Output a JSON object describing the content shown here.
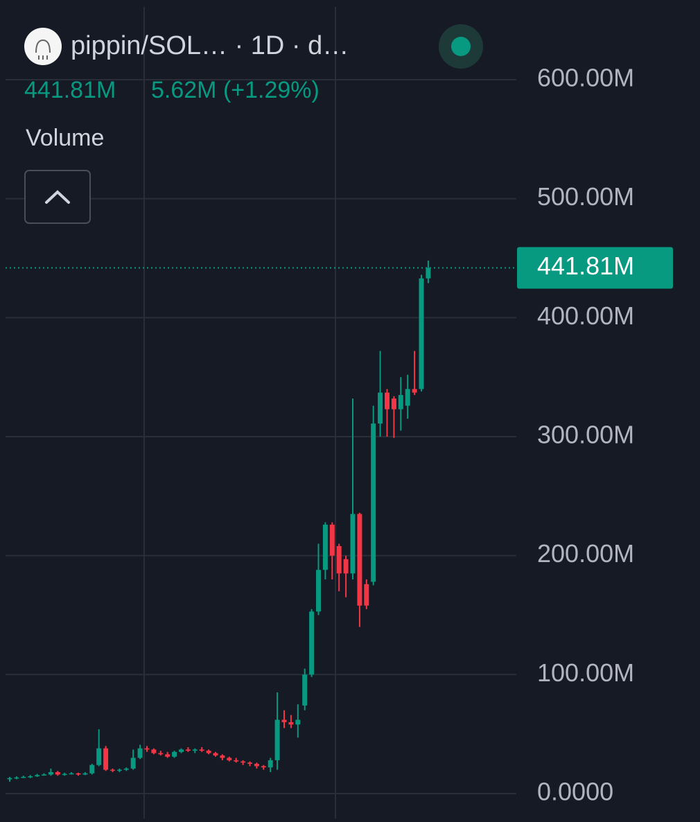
{
  "chart_data": {
    "type": "candlestick",
    "title": "pippin/SOL… · 1D · d…",
    "legend_value": "441.81M",
    "legend_change": "5.62M (+1.29%)",
    "study": "Volume",
    "up_color": "#089981",
    "down_color": "#f23645",
    "ylim": [
      -21,
      667
    ],
    "yticks": [
      {
        "value": 0,
        "label": "0.0000"
      },
      {
        "value": 100,
        "label": "100.00M"
      },
      {
        "value": 200,
        "label": "200.00M"
      },
      {
        "value": 300,
        "label": "300.00M"
      },
      {
        "value": 400,
        "label": "400.00M"
      },
      {
        "value": 500,
        "label": "500.00M"
      },
      {
        "value": 600,
        "label": "600.00M"
      }
    ],
    "grid": true,
    "price_line": {
      "value": 441.81,
      "label": "441.81M"
    },
    "open": [
      12,
      13,
      13.5,
      14,
      14.5,
      15.5,
      16,
      18,
      16,
      16.5,
      17,
      16,
      17,
      24,
      38,
      20,
      19.5,
      20,
      21,
      30,
      38,
      37,
      34,
      33,
      31,
      35,
      37,
      36,
      37,
      36,
      34,
      32,
      30,
      28,
      27,
      26,
      25,
      23,
      22,
      28,
      62,
      60,
      58,
      74,
      100,
      153,
      188,
      226,
      208,
      197,
      185,
      235,
      176,
      178,
      311,
      337,
      332,
      323,
      326,
      340,
      340,
      433
    ],
    "high": [
      14,
      14.5,
      15,
      15.5,
      16.5,
      17,
      21,
      19,
      17.5,
      18,
      17.5,
      18,
      25,
      54,
      40,
      21,
      21,
      22,
      37,
      41,
      40,
      38,
      36,
      35,
      36,
      38,
      39,
      38,
      39,
      37,
      35,
      33,
      31,
      30,
      28,
      27,
      26,
      24,
      30,
      85,
      70,
      66,
      75,
      105,
      155,
      210,
      228,
      228,
      210,
      200,
      332,
      236,
      180,
      326,
      372,
      340,
      334,
      350,
      352,
      372,
      436,
      448
    ],
    "low": [
      10,
      12,
      13,
      13,
      14,
      15,
      15,
      15,
      15,
      16,
      15,
      15.5,
      16,
      23,
      19,
      18,
      18,
      19,
      20,
      29,
      35,
      33,
      32,
      30,
      30,
      34,
      35,
      34,
      35,
      33,
      31,
      28,
      27,
      26,
      24,
      23,
      21,
      20,
      18,
      20,
      55,
      55,
      47,
      70,
      98,
      150,
      180,
      180,
      170,
      165,
      180,
      140,
      155,
      175,
      300,
      300,
      299,
      305,
      315,
      335,
      338,
      429
    ],
    "close": [
      13,
      13.5,
      14,
      14.5,
      15.5,
      16,
      18,
      16,
      16.5,
      17,
      16,
      17,
      24,
      38,
      20,
      19.5,
      20,
      21,
      30,
      38,
      37,
      34,
      33,
      31,
      35,
      37,
      36,
      37,
      36,
      34,
      32,
      30,
      28,
      27,
      26,
      25,
      23,
      22,
      28,
      62,
      60,
      58,
      62,
      100,
      153,
      188,
      226,
      200,
      185,
      185,
      235,
      158,
      158,
      311,
      337,
      323,
      323,
      335,
      340,
      337,
      433,
      441.81
    ]
  }
}
